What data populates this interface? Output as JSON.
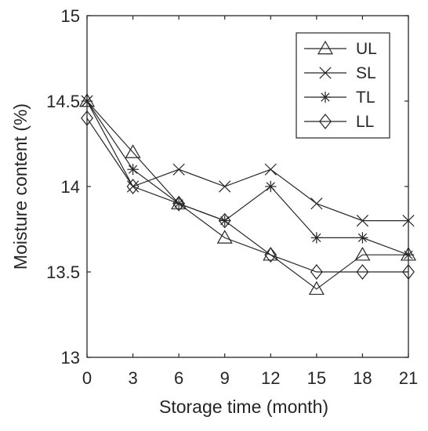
{
  "chart_data": {
    "type": "line",
    "title": "",
    "xlabel": "Storage time (month)",
    "ylabel": "Moisture content (%)",
    "x": [
      0,
      3,
      6,
      9,
      12,
      15,
      18,
      21
    ],
    "xlim": [
      0,
      21
    ],
    "ylim": [
      13,
      15
    ],
    "xticks": [
      "0",
      "3",
      "6",
      "9",
      "12",
      "15",
      "18",
      "21"
    ],
    "yticks": [
      "13",
      "13.5",
      "14",
      "14.5",
      "15"
    ],
    "grid": false,
    "legend_position": "top-right",
    "line_color": "#262626",
    "series": [
      {
        "name": "UL",
        "marker": "triangle",
        "values": [
          14.5,
          14.2,
          13.9,
          13.7,
          13.6,
          13.4,
          13.6,
          13.6
        ]
      },
      {
        "name": "SL",
        "marker": "x",
        "values": [
          14.5,
          14.0,
          14.1,
          14.0,
          14.1,
          13.9,
          13.8,
          13.8
        ]
      },
      {
        "name": "TL",
        "marker": "star",
        "values": [
          14.5,
          14.1,
          13.9,
          13.8,
          14.0,
          13.7,
          13.7,
          13.6
        ]
      },
      {
        "name": "LL",
        "marker": "diamond",
        "values": [
          14.4,
          14.0,
          13.9,
          13.8,
          13.6,
          13.5,
          13.5,
          13.5
        ]
      }
    ]
  }
}
